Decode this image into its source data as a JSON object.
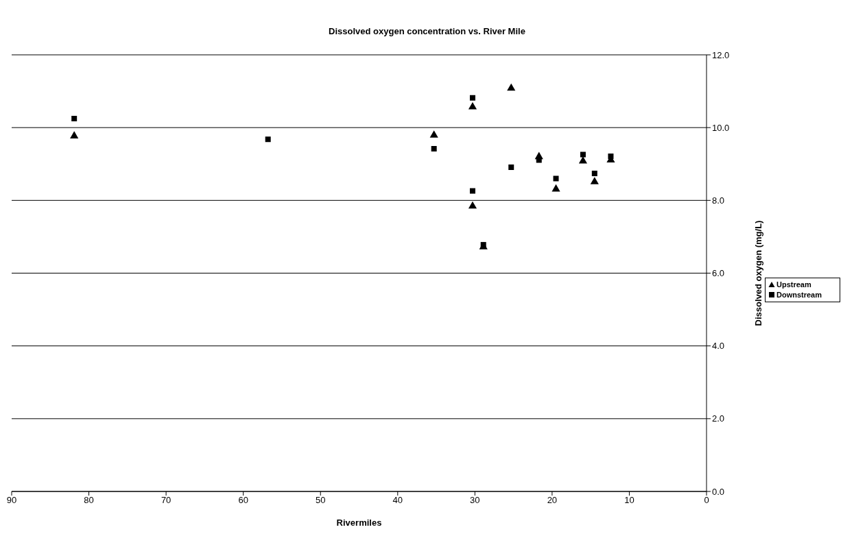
{
  "chart_data": {
    "type": "scatter",
    "title": "Dissolved oxygen concentration vs. River Mile",
    "xlabel": "Rivermiles",
    "ylabel": "Dissolved oxygen (mg/L)",
    "xlim": [
      90,
      0
    ],
    "xticks": [
      90,
      80,
      70,
      60,
      50,
      40,
      30,
      20,
      10,
      0
    ],
    "ylim": [
      0,
      12
    ],
    "yticks": [
      {
        "value": 0,
        "label": "0.0"
      },
      {
        "value": 2,
        "label": "2.0"
      },
      {
        "value": 4,
        "label": "4.0"
      },
      {
        "value": 6,
        "label": "6.0"
      },
      {
        "value": 8,
        "label": "8.0"
      },
      {
        "value": 10,
        "label": "10.0"
      },
      {
        "value": 12,
        "label": "12.0"
      }
    ],
    "grid": "y",
    "legend": "right",
    "series": [
      {
        "name": "Upstream",
        "color": "#000000",
        "marker": "triangle",
        "x": [
          81.9,
          35.3,
          30.3,
          30.3,
          28.9,
          25.3,
          21.7,
          19.5,
          16.0,
          14.5,
          12.4
        ],
        "values": [
          9.77,
          9.79,
          10.57,
          7.84,
          6.72,
          11.08,
          9.2,
          8.31,
          9.08,
          8.51,
          9.11
        ]
      },
      {
        "name": "Downstream",
        "color": "#000000",
        "marker": "square",
        "x": [
          81.9,
          56.8,
          35.3,
          30.3,
          30.3,
          28.9,
          25.3,
          21.7,
          19.5,
          16.0,
          14.5,
          12.4
        ],
        "values": [
          10.25,
          9.68,
          9.42,
          10.82,
          8.26,
          6.78,
          8.91,
          9.11,
          8.6,
          9.26,
          8.74,
          9.21
        ]
      }
    ]
  }
}
